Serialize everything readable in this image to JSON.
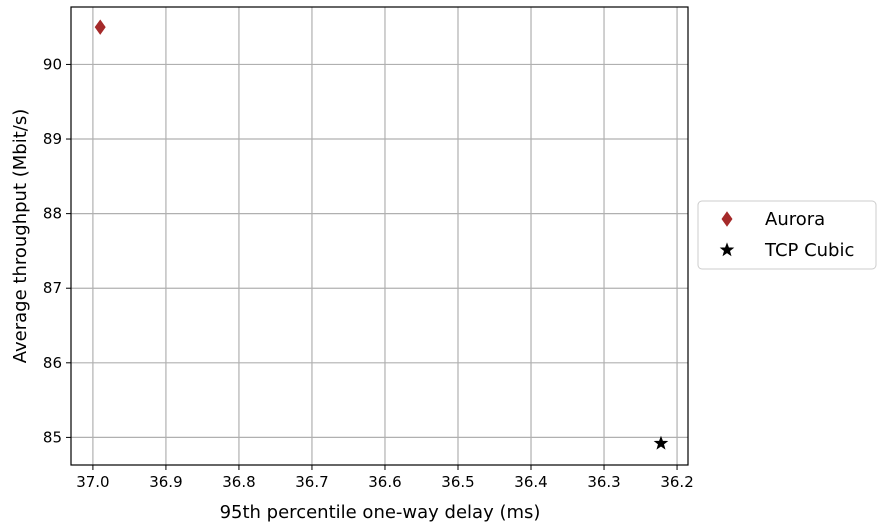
{
  "chart_data": {
    "type": "scatter",
    "title": "",
    "xlabel": "95th percentile one-way delay (ms)",
    "ylabel": "Average throughput (Mbit/s)",
    "x_inverted": true,
    "xlim": [
      37.03,
      36.185
    ],
    "ylim": [
      84.63,
      90.77
    ],
    "x_ticks": [
      37.0,
      36.9,
      36.8,
      36.7,
      36.6,
      36.5,
      36.4,
      36.3,
      36.2
    ],
    "x_tick_labels": [
      "37.0",
      "36.9",
      "36.8",
      "36.7",
      "36.6",
      "36.5",
      "36.4",
      "36.3",
      "36.2"
    ],
    "y_ticks": [
      85,
      86,
      87,
      88,
      89,
      90
    ],
    "y_tick_labels": [
      "85",
      "86",
      "87",
      "88",
      "89",
      "90"
    ],
    "grid": true,
    "legend_position": "outside-right",
    "series": [
      {
        "name": "Aurora",
        "marker": "thin-diamond",
        "color": "#a52a2a",
        "points": [
          {
            "x": 36.99,
            "y": 90.5
          }
        ]
      },
      {
        "name": "TCP Cubic",
        "marker": "star",
        "color": "#000000",
        "points": [
          {
            "x": 36.222,
            "y": 84.92
          }
        ]
      }
    ]
  }
}
